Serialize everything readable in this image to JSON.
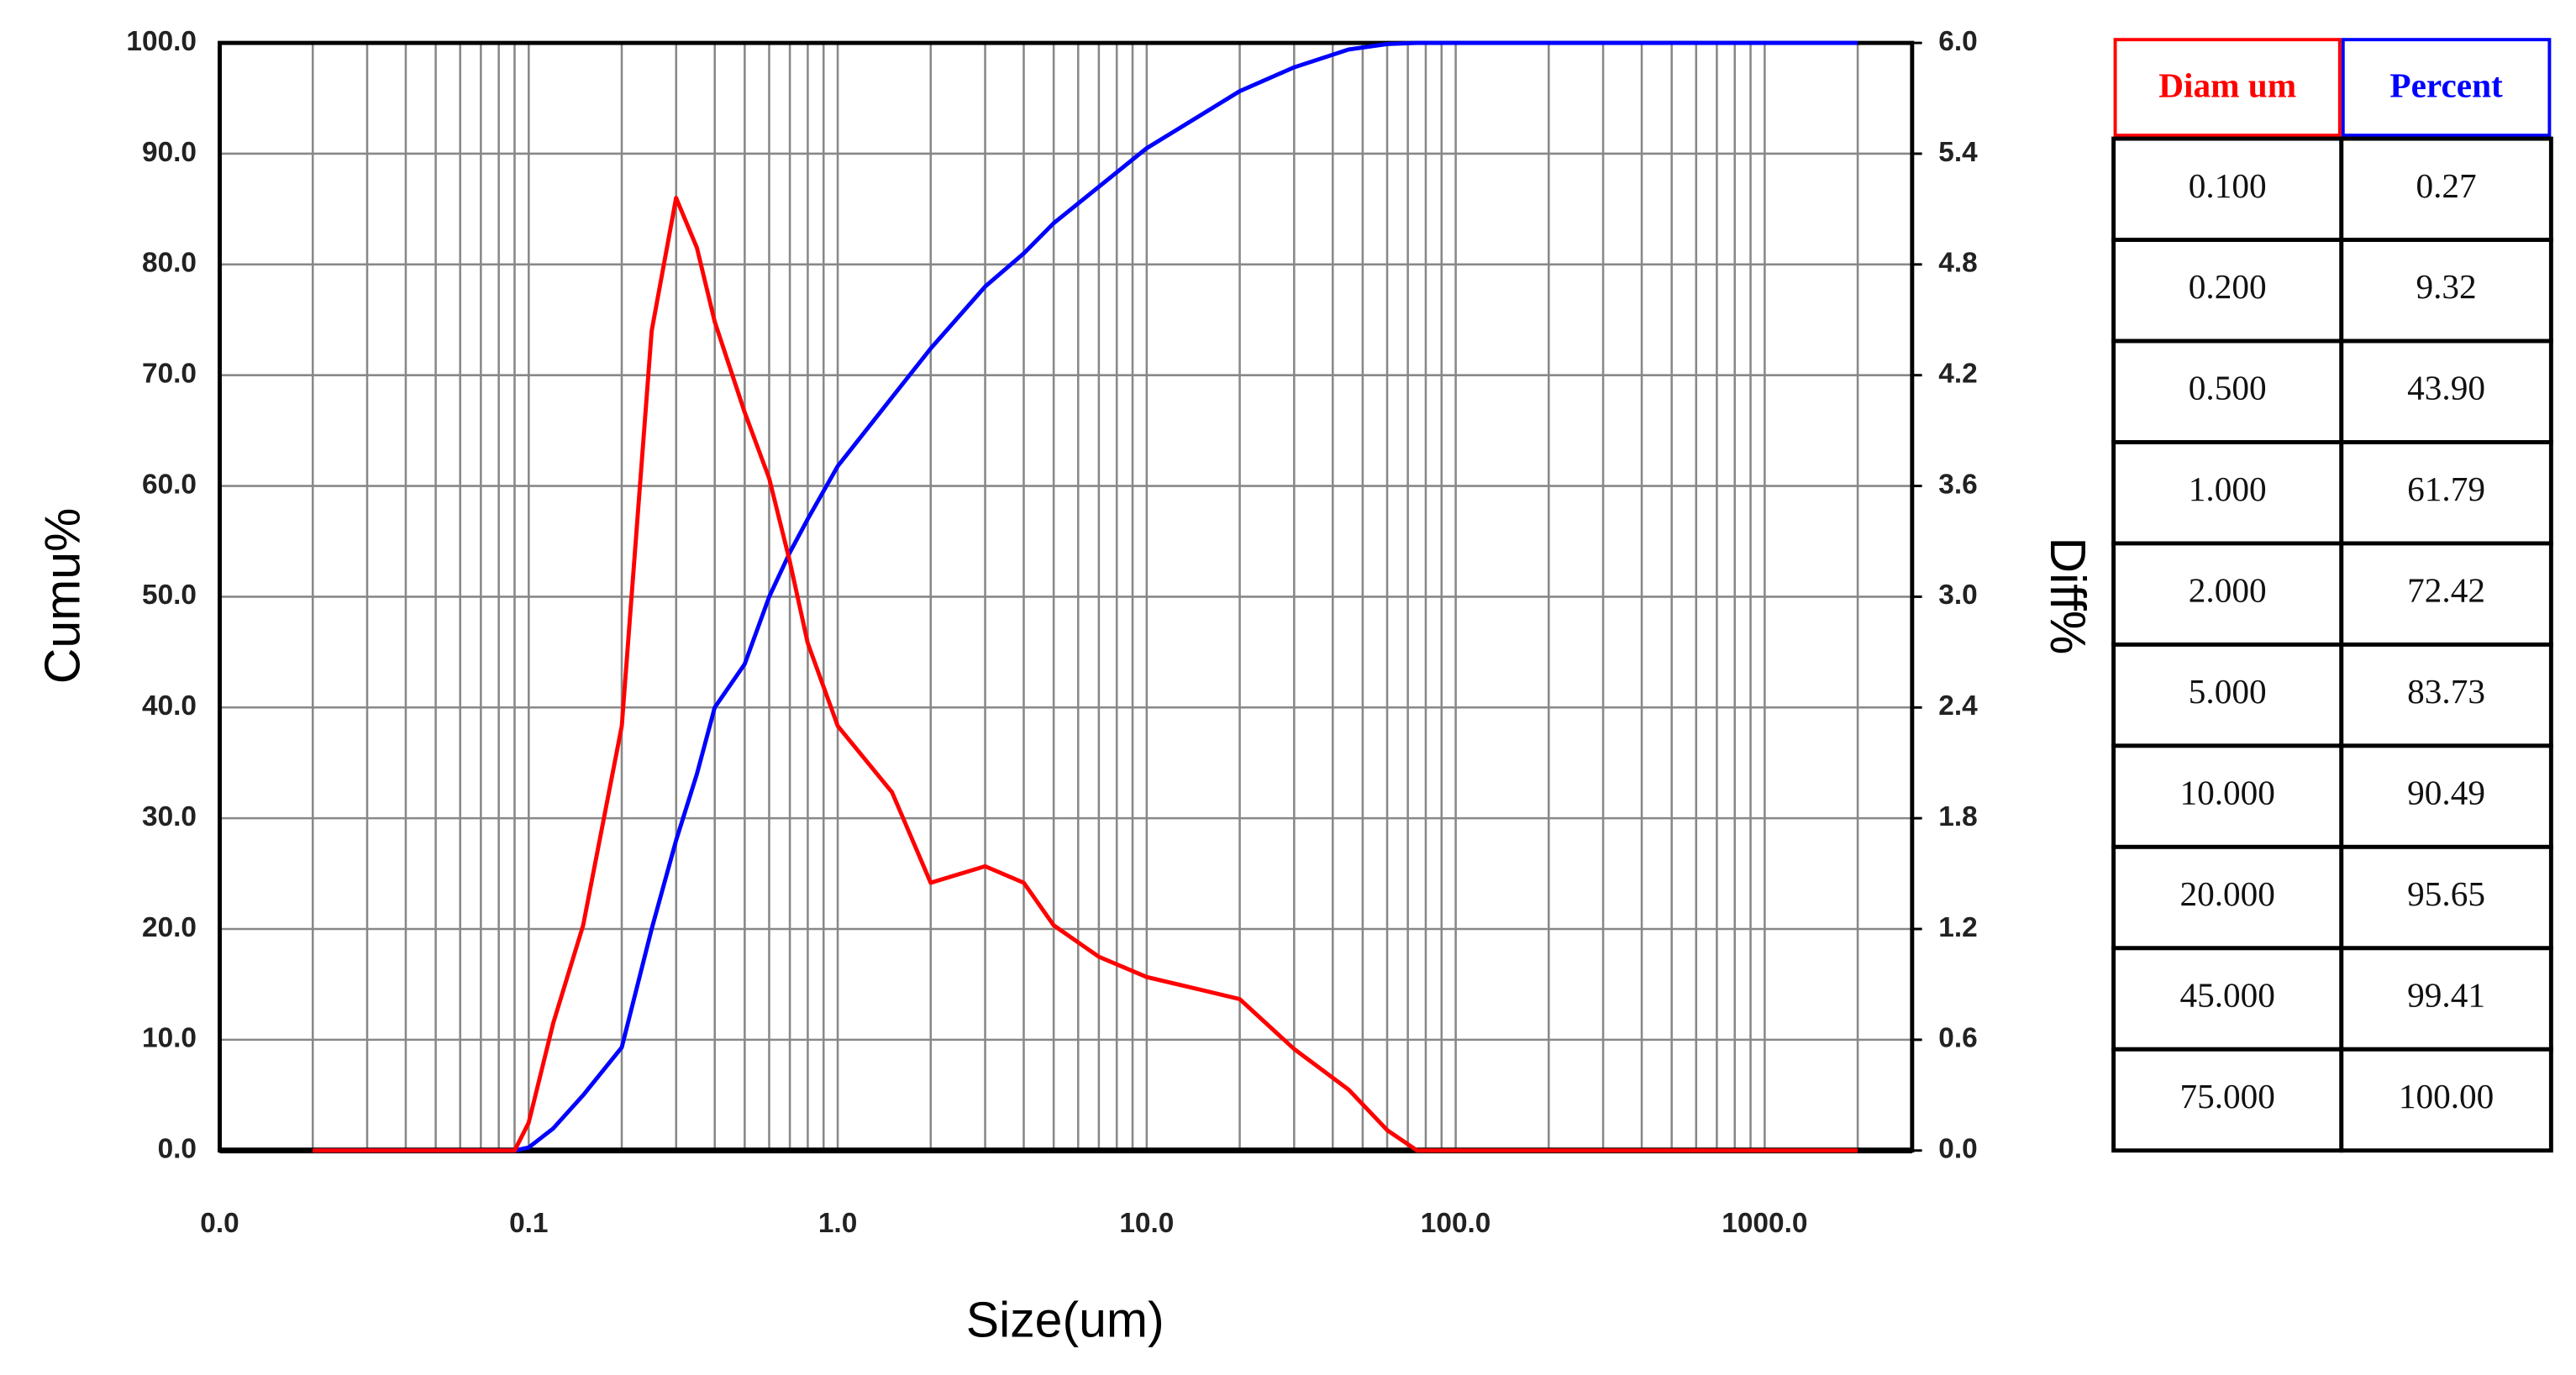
{
  "chart_data": {
    "type": "line",
    "x_label": "Size(um)",
    "y_label": "Cumu%",
    "y2_label": "Diff%",
    "log_x": true,
    "grid": true,
    "xlim": [
      0.01,
      3000
    ],
    "xticks": [
      {
        "value": 0.01,
        "label": "0.0"
      },
      {
        "value": 0.1,
        "label": "0.1"
      },
      {
        "value": 1,
        "label": "1.0"
      },
      {
        "value": 10,
        "label": "10.0"
      },
      {
        "value": 100,
        "label": "100.0"
      },
      {
        "value": 1000,
        "label": "1000.0"
      }
    ],
    "xminor_ticks": [
      0.02,
      0.03,
      0.04,
      0.05,
      0.06,
      0.07,
      0.08,
      0.09,
      0.2,
      0.3,
      0.4,
      0.5,
      0.6,
      0.7,
      0.8,
      0.9,
      2,
      3,
      4,
      5,
      6,
      7,
      8,
      9,
      20,
      30,
      40,
      50,
      60,
      70,
      80,
      90,
      200,
      300,
      400,
      500,
      600,
      700,
      800,
      900,
      2000
    ],
    "ylim": [
      0,
      100
    ],
    "yticks": [
      {
        "value": 0,
        "label": "0.0"
      },
      {
        "value": 10,
        "label": "10.0"
      },
      {
        "value": 20,
        "label": "20.0"
      },
      {
        "value": 30,
        "label": "30.0"
      },
      {
        "value": 40,
        "label": "40.0"
      },
      {
        "value": 50,
        "label": "50.0"
      },
      {
        "value": 60,
        "label": "60.0"
      },
      {
        "value": 70,
        "label": "70.0"
      },
      {
        "value": 80,
        "label": "80.0"
      },
      {
        "value": 90,
        "label": "90.0"
      },
      {
        "value": 100,
        "label": "100.0"
      }
    ],
    "y2lim": [
      0,
      6
    ],
    "y2ticks": [
      {
        "value": 0,
        "label": "0.0"
      },
      0.6,
      1.2,
      1.8,
      2.4,
      {
        "value": 3,
        "label": "3.0"
      },
      3.6,
      4.2,
      4.8,
      5.4,
      {
        "value": 6,
        "label": "6.0"
      }
    ],
    "x": [
      0.02,
      0.03,
      0.05,
      0.07,
      0.08,
      0.09,
      0.1,
      0.12,
      0.15,
      0.2,
      0.25,
      0.3,
      0.35,
      0.4,
      0.5,
      0.6,
      0.7,
      0.8,
      1,
      1.5,
      2,
      3,
      4,
      5,
      7,
      10,
      15,
      20,
      30,
      45,
      60,
      75,
      100,
      200,
      500,
      1000,
      2000
    ],
    "series": [
      {
        "color": "#0000ff",
        "values": [
          0,
          0,
          0,
          0,
          0,
          0,
          0.27,
          2,
          5,
          9.32,
          20,
          28,
          34,
          40,
          43.9,
          50,
          54,
          57,
          61.79,
          68,
          72.42,
          78,
          81,
          83.73,
          87,
          90.49,
          93.5,
          95.65,
          97.8,
          99.41,
          99.9,
          100,
          100,
          100,
          100,
          100,
          100
        ]
      },
      {
        "color": "#ff0000",
        "axis": "y2",
        "values": [
          0,
          0,
          0,
          0,
          0,
          0,
          0.15,
          0.69,
          1.22,
          2.3,
          4.44,
          5.16,
          4.89,
          4.49,
          4.0,
          3.64,
          3.19,
          2.75,
          2.3,
          1.94,
          1.45,
          1.54,
          1.45,
          1.22,
          1.05,
          0.94,
          0.87,
          0.82,
          0.55,
          0.33,
          0.11,
          0,
          0,
          0,
          0,
          0,
          0
        ]
      }
    ]
  },
  "table": {
    "columns": [
      {
        "text": "Diam um",
        "color": "#ff0000"
      },
      {
        "text": "Percent",
        "color": "#0000ff"
      }
    ],
    "rows": [
      [
        "0.100",
        "0.27"
      ],
      [
        "0.200",
        "9.32"
      ],
      [
        "0.500",
        "43.90"
      ],
      [
        "1.000",
        "61.79"
      ],
      [
        "2.000",
        "72.42"
      ],
      [
        "5.000",
        "83.73"
      ],
      [
        "10.000",
        "90.49"
      ],
      [
        "20.000",
        "95.65"
      ],
      [
        "45.000",
        "99.41"
      ],
      [
        "75.000",
        "100.00"
      ]
    ]
  }
}
